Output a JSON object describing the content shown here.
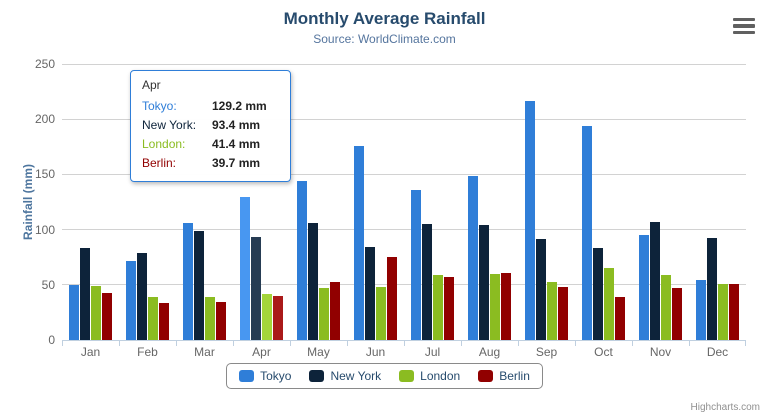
{
  "header": {
    "title": "Monthly Average Rainfall",
    "subtitle": "Source: WorldClimate.com"
  },
  "chart_data": {
    "type": "bar",
    "title": "Monthly Average Rainfall",
    "subtitle": "Source: WorldClimate.com",
    "categories": [
      "Jan",
      "Feb",
      "Mar",
      "Apr",
      "May",
      "Jun",
      "Jul",
      "Aug",
      "Sep",
      "Oct",
      "Nov",
      "Dec"
    ],
    "series": [
      {
        "name": "Tokyo",
        "color": "#2f7ed8",
        "values": [
          49.9,
          71.5,
          106.4,
          129.2,
          144.0,
          176.0,
          135.6,
          148.5,
          216.4,
          194.1,
          95.6,
          54.4
        ]
      },
      {
        "name": "New York",
        "color": "#0d233a",
        "values": [
          83.6,
          78.8,
          98.5,
          93.4,
          106.0,
          84.5,
          105.0,
          104.3,
          91.2,
          83.5,
          106.6,
          92.3
        ]
      },
      {
        "name": "London",
        "color": "#8bbc21",
        "values": [
          48.9,
          38.8,
          39.3,
          41.4,
          47.0,
          48.3,
          59.0,
          59.6,
          52.4,
          65.2,
          59.3,
          51.2
        ]
      },
      {
        "name": "Berlin",
        "color": "#910000",
        "values": [
          42.4,
          33.2,
          34.5,
          39.7,
          52.6,
          75.5,
          57.4,
          60.4,
          47.6,
          39.1,
          46.8,
          51.1
        ]
      }
    ],
    "xlabel": "",
    "ylabel": "Rainfall (mm)",
    "ylim": [
      0,
      250
    ],
    "yticks": [
      0,
      50,
      100,
      150,
      200,
      250
    ],
    "grid": true,
    "legend_position": "bottom",
    "hover_category": "Apr"
  },
  "tooltip": {
    "header": "Apr",
    "border_color": "#2f7ed8",
    "rows": [
      {
        "name": "Tokyo:",
        "value": "129.2 mm",
        "color": "#2f7ed8"
      },
      {
        "name": "New York:",
        "value": "93.4 mm",
        "color": "#0d233a"
      },
      {
        "name": "London:",
        "value": "41.4 mm",
        "color": "#8bbc21"
      },
      {
        "name": "Berlin:",
        "value": "39.7 mm",
        "color": "#910000"
      }
    ]
  },
  "footer": {
    "credits": "Highcharts.com"
  },
  "icons": {
    "export_menu": "hamburger-icon"
  },
  "colors": {
    "title": "#274b6d",
    "subtitle": "#55759e",
    "axis_title": "#4d759e",
    "axis_label": "#666666",
    "grid": "#d2d2d2",
    "axis_line": "#c0d0e0",
    "legend_border": "#8a8a8a",
    "credits": "#909090"
  }
}
